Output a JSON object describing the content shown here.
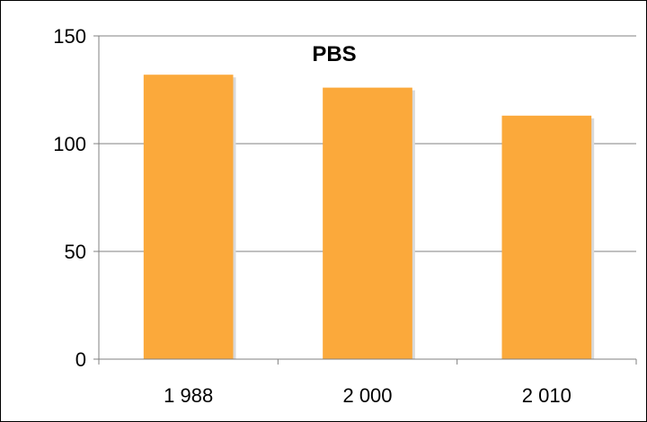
{
  "chart_data": {
    "type": "bar",
    "title": "PBS",
    "categories": [
      "1 988",
      "2 000",
      "2 010"
    ],
    "series": [
      {
        "name": "",
        "values": [
          132,
          126,
          113
        ],
        "color": "#FBA93B"
      }
    ],
    "xlabel": "",
    "ylabel": "",
    "ylim": [
      0,
      150
    ],
    "yticks": [
      0,
      50,
      100,
      150
    ],
    "ytick_labels": [
      "0",
      "50",
      "100",
      "150"
    ],
    "grid": true,
    "legend": "none",
    "colors": {
      "bar": "#FBA93B",
      "grid": "#808080",
      "axis": "#808080",
      "text": "#000000"
    }
  }
}
